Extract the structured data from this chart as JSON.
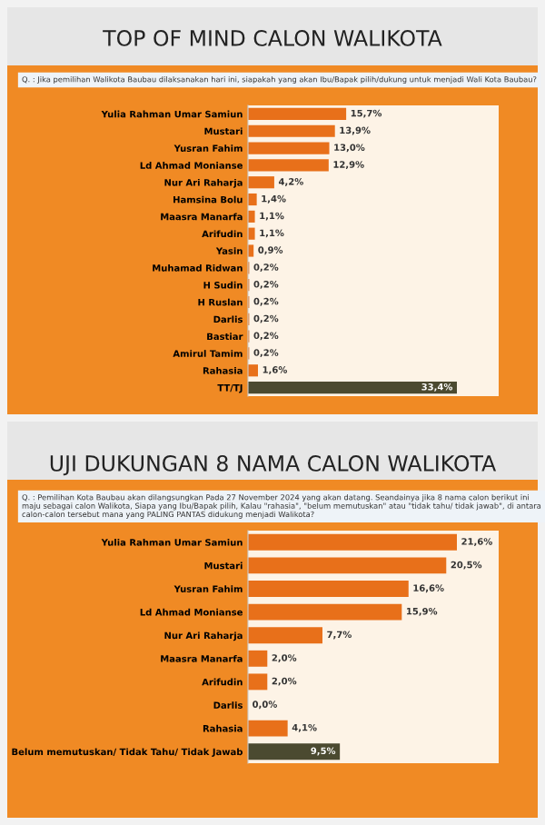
{
  "chart_data": [
    {
      "type": "bar",
      "orientation": "horizontal",
      "title": "TOP OF MIND CALON WALIKOTA",
      "subtitle": "Q. : Jika pemilihan Walikota Baubau dilaksanakan hari ini, siapakah yang akan Ibu/Bapak pilih/dukung untuk menjadi Wali Kota Baubau?",
      "categories": [
        "Yulia Rahman Umar Samiun",
        "Mustari",
        "Yusran Fahim",
        "Ld Ahmad Monianse",
        "Nur Ari Raharja",
        "Hamsina Bolu",
        "Maasra Manarfa",
        "Arifudin",
        "Yasin",
        "Muhamad Ridwan",
        "H Sudin",
        "H Ruslan",
        "Darlis",
        "Bastiar",
        "Amirul Tamim",
        "Rahasia",
        "TT/TJ"
      ],
      "values": [
        15.7,
        13.9,
        13.0,
        12.9,
        4.2,
        1.4,
        1.1,
        1.1,
        0.9,
        0.2,
        0.2,
        0.2,
        0.2,
        0.2,
        0.2,
        1.6,
        33.4
      ],
      "colors": [
        "#e8701a",
        "#e8701a",
        "#e8701a",
        "#e8701a",
        "#e8701a",
        "#e8701a",
        "#e8701a",
        "#e8701a",
        "#e8701a",
        "#e8701a",
        "#e8701a",
        "#e8701a",
        "#e8701a",
        "#e8701a",
        "#e8701a",
        "#e8701a",
        "#4b4a30"
      ],
      "value_labels": [
        "15,7%",
        "13,9%",
        "13,0%",
        "12,9%",
        "4,2%",
        "1,4%",
        "1,1%",
        "1,1%",
        "0,9%",
        "0,2%",
        "0,2%",
        "0,2%",
        "0,2%",
        "0,2%",
        "0,2%",
        "1,6%",
        "33,4%"
      ]
    },
    {
      "type": "bar",
      "orientation": "horizontal",
      "title": "UJI DUKUNGAN 8 NAMA CALON WALIKOTA",
      "subtitle": "Q. : Pemilihan Kota Baubau akan dilangsungkan Pada 27 November 2024 yang akan datang. Seandainya jika 8 nama calon berikut ini maju sebagai calon Walikota, Siapa yang Ibu/Bapak pilih, Kalau \"rahasia\", \"belum memutuskan\" atau \"tidak tahu/ tidak jawab\", di antara calon-calon tersebut mana yang PALING PANTAS didukung menjadi Walikota?",
      "categories": [
        "Yulia Rahman Umar Samiun",
        "Mustari",
        "Yusran Fahim",
        "Ld Ahmad Monianse",
        "Nur Ari Raharja",
        "Maasra Manarfa",
        "Arifudin",
        "Darlis",
        "Rahasia",
        "Belum memutuskan/ Tidak Tahu/ Tidak Jawab"
      ],
      "values": [
        21.6,
        20.5,
        16.6,
        15.9,
        7.7,
        2.0,
        2.0,
        0.0,
        4.1,
        9.5
      ],
      "colors": [
        "#e8701a",
        "#e8701a",
        "#e8701a",
        "#e8701a",
        "#e8701a",
        "#e8701a",
        "#e8701a",
        "#e8701a",
        "#e8701a",
        "#4b4a30"
      ],
      "value_labels": [
        "21,6%",
        "20,5%",
        "16,6%",
        "15,9%",
        "7,7%",
        "2,0%",
        "2,0%",
        "0,0%",
        "4,1%",
        "9,5%"
      ]
    }
  ]
}
